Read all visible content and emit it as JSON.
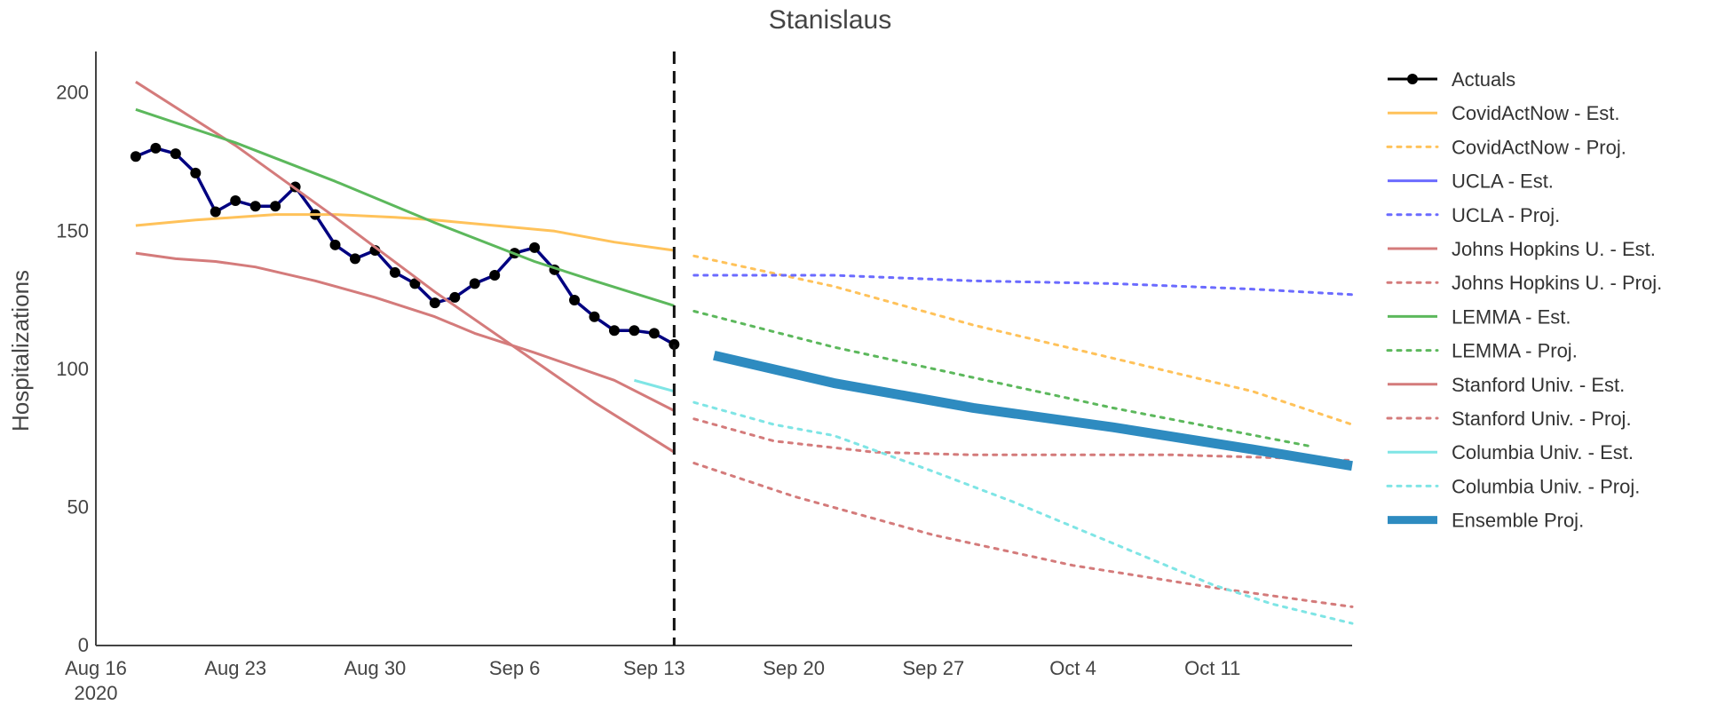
{
  "chart_data": {
    "type": "line",
    "title": "Stanislaus",
    "xlabel": "",
    "ylabel": "Hospitalizations",
    "x_axis": {
      "range": [
        "2020-08-16",
        "2020-10-18"
      ],
      "ticks": [
        {
          "date": "2020-08-16",
          "label": "Aug 16",
          "sublabel": "2020"
        },
        {
          "date": "2020-08-23",
          "label": "Aug 23"
        },
        {
          "date": "2020-08-30",
          "label": "Aug 30"
        },
        {
          "date": "2020-09-06",
          "label": "Sep 6"
        },
        {
          "date": "2020-09-13",
          "label": "Sep 13"
        },
        {
          "date": "2020-09-20",
          "label": "Sep 20"
        },
        {
          "date": "2020-09-27",
          "label": "Sep 27"
        },
        {
          "date": "2020-10-04",
          "label": "Oct 4"
        },
        {
          "date": "2020-10-11",
          "label": "Oct 11"
        }
      ]
    },
    "y_axis": {
      "range": [
        0,
        215
      ],
      "ticks": [
        0,
        50,
        100,
        150,
        200
      ]
    },
    "forecast_start": "2020-09-14",
    "grid": false,
    "legend_position": "right",
    "series": [
      {
        "name": "Actuals",
        "color": "#000080",
        "dash": "solid",
        "markers": true,
        "points": [
          [
            "2020-08-18",
            177
          ],
          [
            "2020-08-19",
            180
          ],
          [
            "2020-08-20",
            178
          ],
          [
            "2020-08-21",
            171
          ],
          [
            "2020-08-22",
            157
          ],
          [
            "2020-08-23",
            161
          ],
          [
            "2020-08-24",
            159
          ],
          [
            "2020-08-25",
            159
          ],
          [
            "2020-08-26",
            166
          ],
          [
            "2020-08-27",
            156
          ],
          [
            "2020-08-28",
            145
          ],
          [
            "2020-08-29",
            140
          ],
          [
            "2020-08-30",
            143
          ],
          [
            "2020-08-31",
            135
          ],
          [
            "2020-09-01",
            131
          ],
          [
            "2020-09-02",
            124
          ],
          [
            "2020-09-03",
            126
          ],
          [
            "2020-09-04",
            131
          ],
          [
            "2020-09-05",
            134
          ],
          [
            "2020-09-06",
            142
          ],
          [
            "2020-09-07",
            144
          ],
          [
            "2020-09-08",
            136
          ],
          [
            "2020-09-09",
            125
          ],
          [
            "2020-09-10",
            119
          ],
          [
            "2020-09-11",
            114
          ],
          [
            "2020-09-12",
            114
          ],
          [
            "2020-09-13",
            113
          ],
          [
            "2020-09-14",
            109
          ]
        ]
      },
      {
        "name": "CovidActNow - Est.",
        "color": "#ffc25a",
        "dash": "solid",
        "points": [
          [
            "2020-08-18",
            152
          ],
          [
            "2020-08-21",
            154
          ],
          [
            "2020-08-25",
            156
          ],
          [
            "2020-08-28",
            156
          ],
          [
            "2020-08-31",
            155
          ],
          [
            "2020-09-02",
            154
          ],
          [
            "2020-09-05",
            152
          ],
          [
            "2020-09-08",
            150
          ],
          [
            "2020-09-11",
            146
          ],
          [
            "2020-09-14",
            143
          ]
        ]
      },
      {
        "name": "CovidActNow - Proj.",
        "color": "#ffc25a",
        "dash": "dot",
        "points": [
          [
            "2020-09-15",
            141
          ],
          [
            "2020-09-22",
            130
          ],
          [
            "2020-09-29",
            116
          ],
          [
            "2020-10-06",
            104
          ],
          [
            "2020-10-13",
            92
          ],
          [
            "2020-10-18",
            80
          ]
        ]
      },
      {
        "name": "UCLA - Est.",
        "color": "#6b6bff",
        "dash": "solid",
        "points": []
      },
      {
        "name": "UCLA - Proj.",
        "color": "#6b6bff",
        "dash": "dot",
        "points": [
          [
            "2020-09-15",
            134
          ],
          [
            "2020-09-22",
            134
          ],
          [
            "2020-09-29",
            132
          ],
          [
            "2020-10-06",
            131
          ],
          [
            "2020-10-13",
            129
          ],
          [
            "2020-10-18",
            127
          ]
        ]
      },
      {
        "name": "Johns Hopkins U. - Est.",
        "color": "#d47b7b",
        "dash": "solid",
        "points": [
          [
            "2020-08-18",
            204
          ],
          [
            "2020-08-23",
            181
          ],
          [
            "2020-08-28",
            155
          ],
          [
            "2020-09-02",
            128
          ],
          [
            "2020-09-07",
            103
          ],
          [
            "2020-09-10",
            88
          ],
          [
            "2020-09-14",
            70
          ]
        ]
      },
      {
        "name": "Johns Hopkins U. - Proj.",
        "color": "#d47b7b",
        "dash": "dot",
        "points": [
          [
            "2020-09-15",
            66
          ],
          [
            "2020-09-20",
            54
          ],
          [
            "2020-09-27",
            40
          ],
          [
            "2020-10-04",
            29
          ],
          [
            "2020-10-11",
            21
          ],
          [
            "2020-10-18",
            14
          ]
        ]
      },
      {
        "name": "LEMMA - Est.",
        "color": "#5cb85c",
        "dash": "solid",
        "points": [
          [
            "2020-08-18",
            194
          ],
          [
            "2020-08-23",
            182
          ],
          [
            "2020-08-28",
            168
          ],
          [
            "2020-09-02",
            153
          ],
          [
            "2020-09-07",
            139
          ],
          [
            "2020-09-10",
            132
          ],
          [
            "2020-09-14",
            123
          ]
        ]
      },
      {
        "name": "LEMMA - Proj.",
        "color": "#5cb85c",
        "dash": "dot",
        "points": [
          [
            "2020-09-15",
            121
          ],
          [
            "2020-09-22",
            108
          ],
          [
            "2020-09-29",
            97
          ],
          [
            "2020-10-06",
            86
          ],
          [
            "2020-10-16",
            72
          ]
        ]
      },
      {
        "name": "Stanford Univ. - Est.",
        "color": "#d47b7b",
        "dash": "solid",
        "points": [
          [
            "2020-08-18",
            142
          ],
          [
            "2020-08-20",
            140
          ],
          [
            "2020-08-22",
            139
          ],
          [
            "2020-08-24",
            137
          ],
          [
            "2020-08-27",
            132
          ],
          [
            "2020-08-30",
            126
          ],
          [
            "2020-09-02",
            119
          ],
          [
            "2020-09-04",
            113
          ],
          [
            "2020-09-07",
            106
          ],
          [
            "2020-09-11",
            96
          ],
          [
            "2020-09-14",
            85
          ]
        ]
      },
      {
        "name": "Stanford Univ. - Proj.",
        "color": "#d47b7b",
        "dash": "dot",
        "points": [
          [
            "2020-09-15",
            82
          ],
          [
            "2020-09-19",
            74
          ],
          [
            "2020-09-24",
            70
          ],
          [
            "2020-09-29",
            69
          ],
          [
            "2020-10-04",
            69
          ],
          [
            "2020-10-09",
            69
          ],
          [
            "2020-10-14",
            68
          ],
          [
            "2020-10-18",
            67
          ]
        ]
      },
      {
        "name": "Columbia Univ. - Est.",
        "color": "#7fe5e5",
        "dash": "solid",
        "points": [
          [
            "2020-09-12",
            96
          ],
          [
            "2020-09-13",
            94
          ],
          [
            "2020-09-14",
            92
          ]
        ]
      },
      {
        "name": "Columbia Univ. - Proj.",
        "color": "#7fe5e5",
        "dash": "dot",
        "points": [
          [
            "2020-09-15",
            88
          ],
          [
            "2020-09-19",
            80
          ],
          [
            "2020-09-22",
            76
          ],
          [
            "2020-09-27",
            63
          ],
          [
            "2020-10-01",
            52
          ],
          [
            "2020-10-04",
            43
          ],
          [
            "2020-10-08",
            31
          ],
          [
            "2020-10-11",
            22
          ],
          [
            "2020-10-14",
            15
          ],
          [
            "2020-10-18",
            8
          ]
        ]
      },
      {
        "name": "Ensemble Proj.",
        "color": "#2e8bc0",
        "dash": "solid",
        "width": "thick",
        "points": [
          [
            "2020-09-16",
            105
          ],
          [
            "2020-09-22",
            95
          ],
          [
            "2020-09-29",
            86
          ],
          [
            "2020-10-06",
            79
          ],
          [
            "2020-10-13",
            71
          ],
          [
            "2020-10-18",
            65
          ]
        ]
      }
    ]
  }
}
